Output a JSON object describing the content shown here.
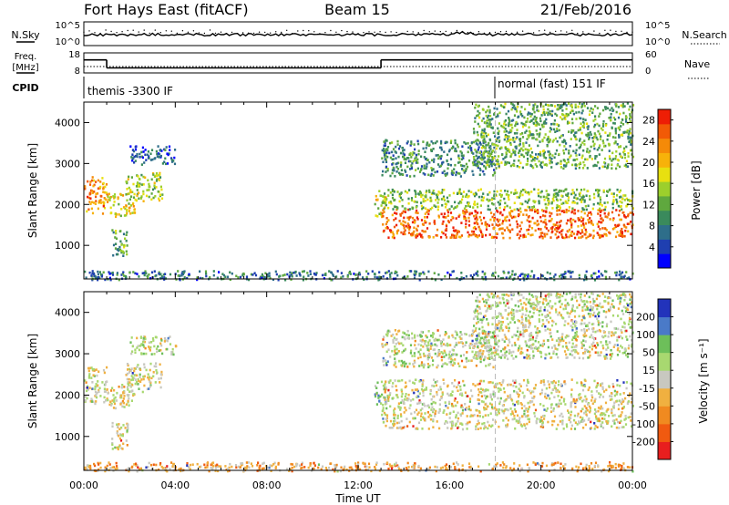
{
  "header": {
    "station": "Fort Hays East (fitACF)",
    "beam": "Beam 15",
    "date": "21/Feb/2016"
  },
  "top_panels": {
    "nsky_label": "N.Sky",
    "nsearch_label": "N.Search",
    "freq_label_1": "Freq.",
    "freq_label_2": "[MHz]",
    "nave_label": "Nave",
    "cpid_label": "CPID",
    "noise_left_ticks": [
      "10^5",
      "10^0"
    ],
    "noise_right_ticks": [
      "10^5",
      "10^0"
    ],
    "freq_left_ticks": [
      "18",
      "8"
    ],
    "nave_right_ticks": [
      "60",
      "0"
    ],
    "cpid_segments": [
      {
        "start_hour": 0,
        "end_hour": 18,
        "label": "themis -3300 IF"
      },
      {
        "start_hour": 18,
        "end_hour": 24,
        "label": "normal (fast) 151 IF"
      }
    ],
    "freq_segments": [
      {
        "start_hour": 0,
        "end_hour": 1,
        "mhz": 14.5
      },
      {
        "start_hour": 1,
        "end_hour": 13,
        "mhz": 10.5
      },
      {
        "start_hour": 13,
        "end_hour": 24,
        "mhz": 14.5
      }
    ]
  },
  "chart_data": [
    {
      "type": "heatmap",
      "name": "power",
      "ylabel": "Slant Range [km]",
      "xlabel": "Time UT",
      "x_ticks": [
        "00:00",
        "04:00",
        "08:00",
        "12:00",
        "16:00",
        "20:00",
        "00:00"
      ],
      "x_range_hours": [
        0,
        24
      ],
      "y_ticks": [
        1000,
        2000,
        3000,
        4000
      ],
      "y_range_km": [
        180,
        4500
      ],
      "colorbar_label": "Power [dB]",
      "colorbar_ticks": [
        4,
        8,
        12,
        16,
        20,
        24,
        28
      ],
      "colorbar_range": [
        0,
        30
      ],
      "colors": [
        "#0000ff",
        "#1f3fb0",
        "#2e6e8a",
        "#3a8a5c",
        "#5fa83e",
        "#9ccf2c",
        "#e8e010",
        "#f7b20a",
        "#f58a08",
        "#f25a06",
        "#ee1e05"
      ],
      "regions": [
        {
          "t0": 0.0,
          "t1": 1.0,
          "r0": 1800,
          "r1": 2700,
          "level": 0.75
        },
        {
          "t0": 1.0,
          "t1": 2.2,
          "r0": 1700,
          "r1": 2300,
          "level": 0.6
        },
        {
          "t0": 1.8,
          "t1": 3.4,
          "r0": 2100,
          "r1": 2800,
          "level": 0.5
        },
        {
          "t0": 1.2,
          "t1": 1.9,
          "r0": 700,
          "r1": 1400,
          "level": 0.4
        },
        {
          "t0": 2.0,
          "t1": 4.0,
          "r0": 3000,
          "r1": 3450,
          "level": 0.2
        },
        {
          "t0": 12.7,
          "t1": 13.2,
          "r0": 1700,
          "r1": 2400,
          "level": 0.6
        },
        {
          "t0": 13.0,
          "t1": 24.0,
          "r0": 1200,
          "r1": 1900,
          "level": 0.85
        },
        {
          "t0": 13.0,
          "t1": 24.0,
          "r0": 1900,
          "r1": 2400,
          "level": 0.45
        },
        {
          "t0": 13.0,
          "t1": 18.0,
          "r0": 2700,
          "r1": 3600,
          "level": 0.3
        },
        {
          "t0": 17.0,
          "t1": 24.0,
          "r0": 2900,
          "r1": 4500,
          "level": 0.4
        },
        {
          "t0": 0.0,
          "t1": 24.0,
          "r0": 180,
          "r1": 400,
          "level": 0.25
        }
      ]
    },
    {
      "type": "heatmap",
      "name": "velocity",
      "ylabel": "Slant Range [km]",
      "xlabel": "Time UT",
      "x_ticks": [
        "00:00",
        "04:00",
        "08:00",
        "12:00",
        "16:00",
        "20:00",
        "00:00"
      ],
      "x_range_hours": [
        0,
        24
      ],
      "y_ticks": [
        1000,
        2000,
        3000,
        4000
      ],
      "y_range_km": [
        180,
        4500
      ],
      "colorbar_label": "Velocity [m s⁻¹]",
      "colorbar_ticks": [
        200,
        100,
        50,
        15,
        -15,
        -50,
        -100,
        -200
      ],
      "colors": [
        "#2233bb",
        "#4a7ac8",
        "#6dbf5a",
        "#a8d870",
        "#c8c8c0",
        "#f0b040",
        "#f08a20",
        "#f05a10",
        "#e81e1e"
      ],
      "regions": [
        {
          "t0": 0.0,
          "t1": 1.0,
          "r0": 1800,
          "r1": 2700,
          "level": 0.5
        },
        {
          "t0": 1.0,
          "t1": 2.2,
          "r0": 1700,
          "r1": 2300,
          "level": 0.5
        },
        {
          "t0": 1.8,
          "t1": 3.4,
          "r0": 2100,
          "r1": 2800,
          "level": 0.5
        },
        {
          "t0": 1.2,
          "t1": 1.9,
          "r0": 700,
          "r1": 1400,
          "level": 0.5
        },
        {
          "t0": 2.0,
          "t1": 4.0,
          "r0": 3000,
          "r1": 3450,
          "level": 0.45
        },
        {
          "t0": 12.7,
          "t1": 13.2,
          "r0": 1700,
          "r1": 2400,
          "level": 0.3
        },
        {
          "t0": 13.0,
          "t1": 24.0,
          "r0": 1200,
          "r1": 2400,
          "level": 0.5
        },
        {
          "t0": 13.0,
          "t1": 18.0,
          "r0": 2700,
          "r1": 3600,
          "level": 0.45
        },
        {
          "t0": 17.0,
          "t1": 24.0,
          "r0": 2900,
          "r1": 4500,
          "level": 0.45
        },
        {
          "t0": 0.0,
          "t1": 24.0,
          "r0": 180,
          "r1": 400,
          "level": 0.65
        }
      ]
    }
  ]
}
